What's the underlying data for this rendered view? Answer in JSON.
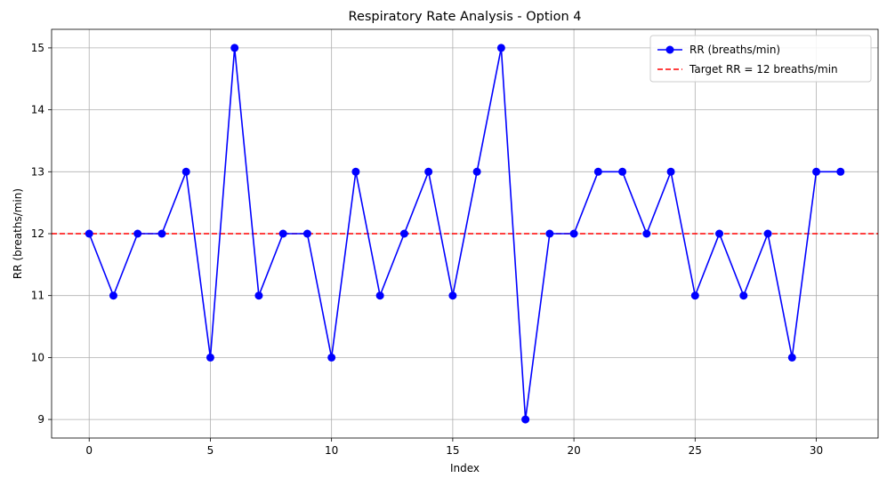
{
  "chart_data": {
    "type": "line",
    "title": "Respiratory Rate Analysis - Option 4",
    "xlabel": "Index",
    "ylabel": "RR (breaths/min)",
    "xlim": [
      -1.55,
      32.55
    ],
    "ylim": [
      8.7,
      15.3
    ],
    "xticks": [
      0,
      5,
      10,
      15,
      20,
      25,
      30
    ],
    "yticks": [
      9,
      10,
      11,
      12,
      13,
      14,
      15
    ],
    "grid": true,
    "legend_position": "top-right",
    "series": [
      {
        "name": "RR (breaths/min)",
        "color": "#0000ff",
        "marker": "circle",
        "x": [
          0,
          1,
          2,
          3,
          4,
          5,
          6,
          7,
          8,
          9,
          10,
          11,
          12,
          13,
          14,
          15,
          16,
          17,
          18,
          19,
          20,
          21,
          22,
          23,
          24,
          25,
          26,
          27,
          28,
          29,
          30,
          31
        ],
        "values": [
          12,
          11,
          12,
          12,
          13,
          10,
          15,
          11,
          12,
          12,
          10,
          13,
          11,
          12,
          13,
          11,
          13,
          15,
          9,
          12,
          12,
          13,
          13,
          12,
          13,
          11,
          12,
          11,
          12,
          10,
          13,
          13
        ]
      }
    ],
    "reference_lines": [
      {
        "name": "Target RR = 12 breaths/min",
        "y": 12,
        "color": "#ff0000",
        "style": "dashed"
      }
    ]
  }
}
